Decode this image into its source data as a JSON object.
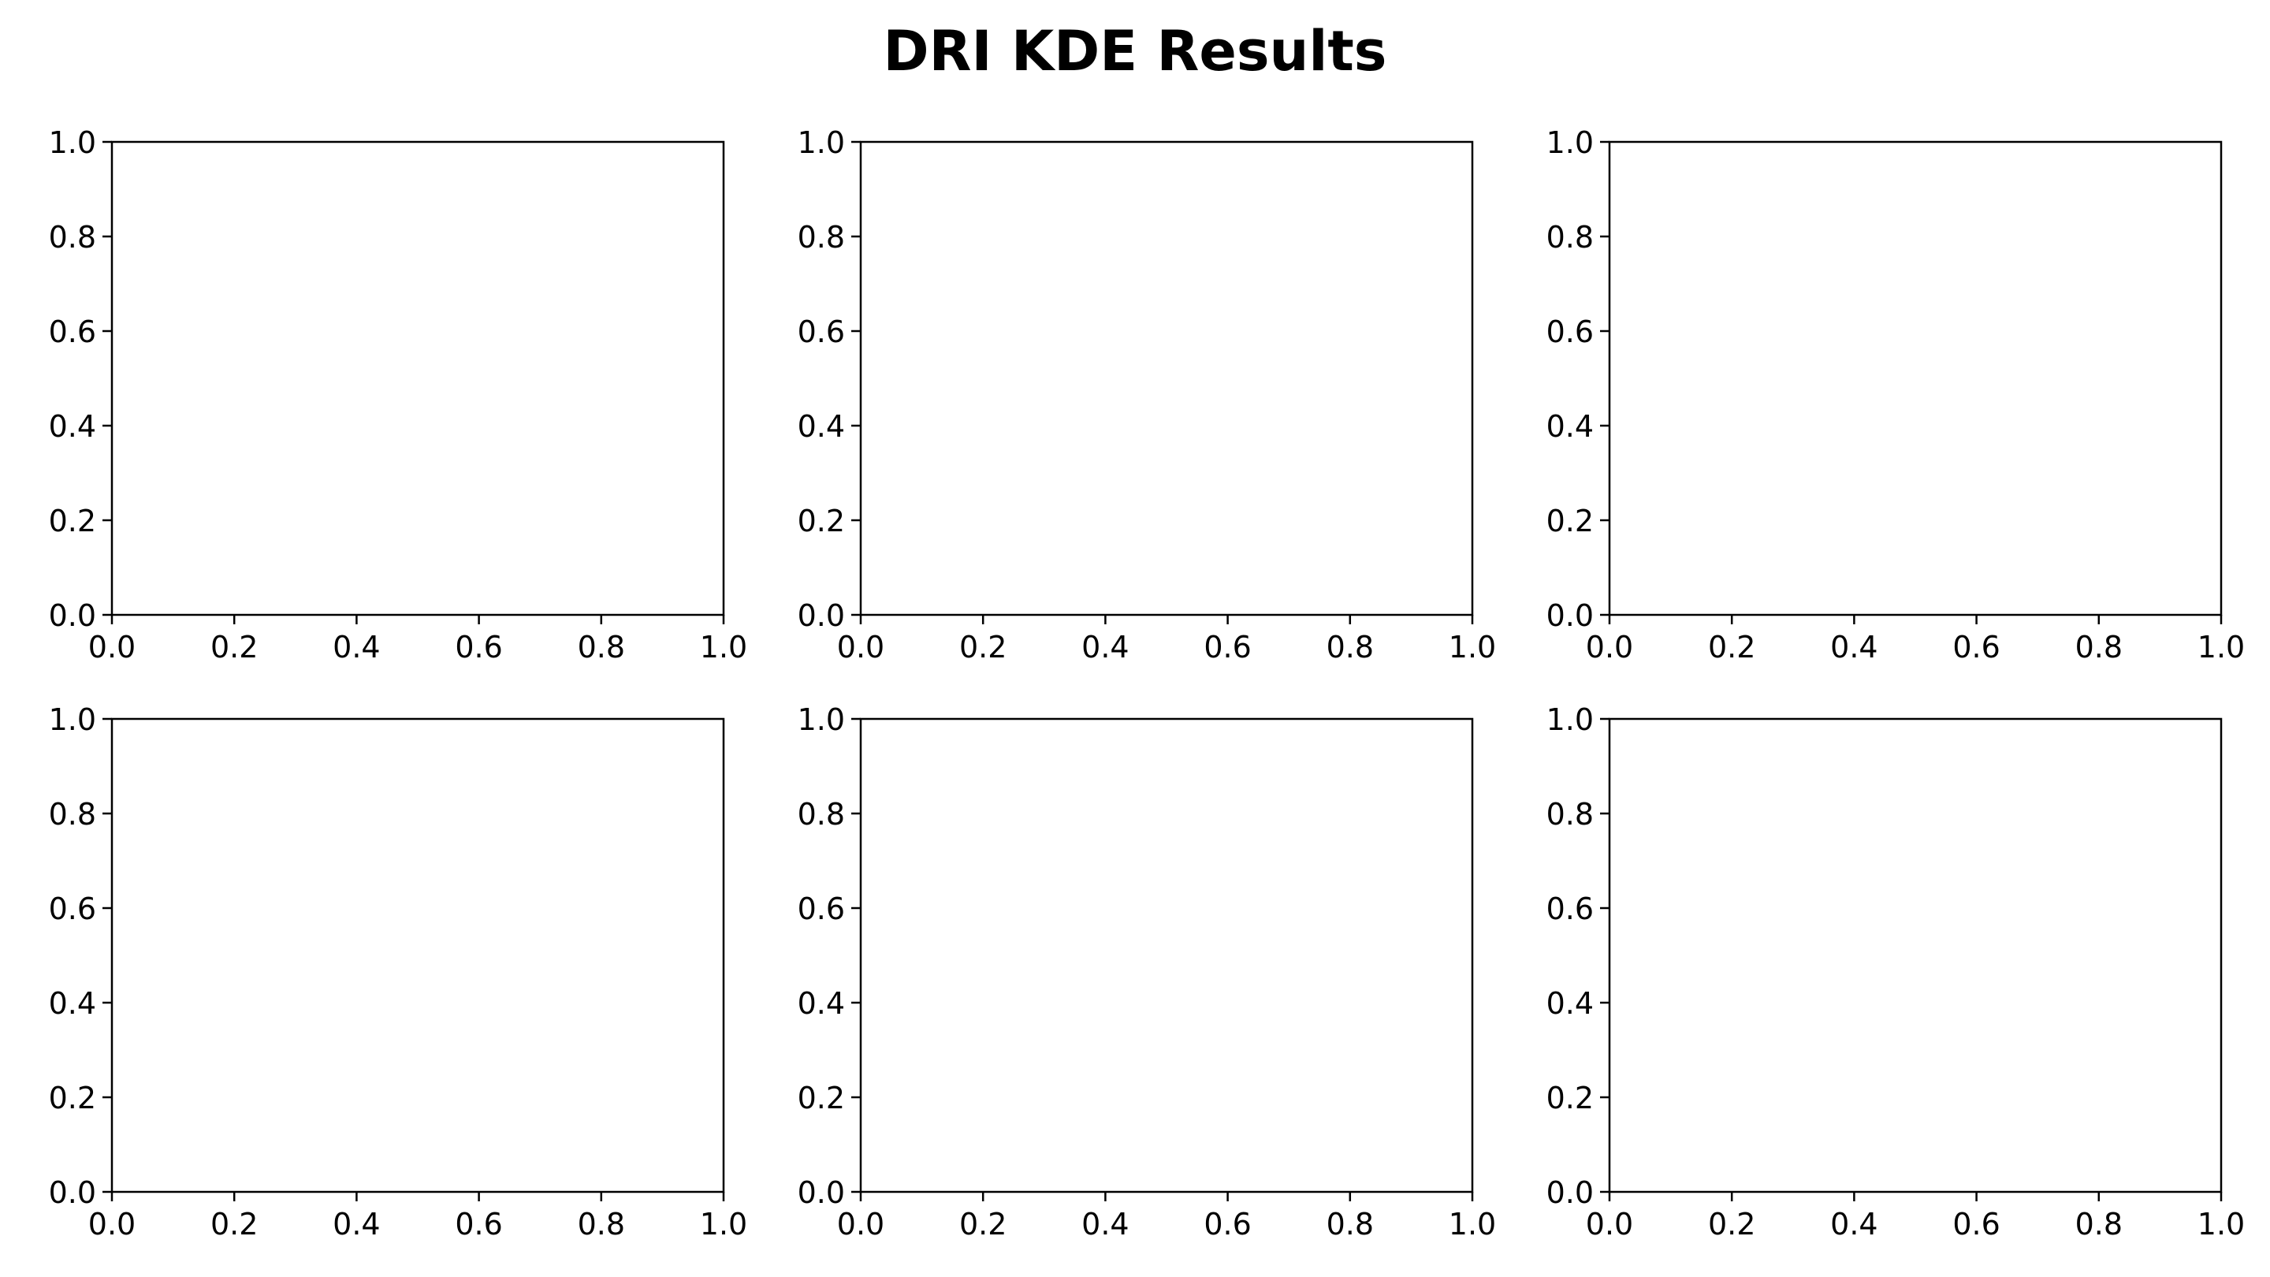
{
  "title": "DRI KDE Results",
  "chart_data": [
    {
      "type": "line",
      "series": [],
      "xlim": [
        0.0,
        1.0
      ],
      "ylim": [
        0.0,
        1.0
      ],
      "xticks": [
        "0.0",
        "0.2",
        "0.4",
        "0.6",
        "0.8",
        "1.0"
      ],
      "yticks": [
        "0.0",
        "0.2",
        "0.4",
        "0.6",
        "0.8",
        "1.0"
      ],
      "grid": false
    },
    {
      "type": "line",
      "series": [],
      "xlim": [
        0.0,
        1.0
      ],
      "ylim": [
        0.0,
        1.0
      ],
      "xticks": [
        "0.0",
        "0.2",
        "0.4",
        "0.6",
        "0.8",
        "1.0"
      ],
      "yticks": [
        "0.0",
        "0.2",
        "0.4",
        "0.6",
        "0.8",
        "1.0"
      ],
      "grid": false
    },
    {
      "type": "line",
      "series": [],
      "xlim": [
        0.0,
        1.0
      ],
      "ylim": [
        0.0,
        1.0
      ],
      "xticks": [
        "0.0",
        "0.2",
        "0.4",
        "0.6",
        "0.8",
        "1.0"
      ],
      "yticks": [
        "0.0",
        "0.2",
        "0.4",
        "0.6",
        "0.8",
        "1.0"
      ],
      "grid": false
    },
    {
      "type": "line",
      "series": [],
      "xlim": [
        0.0,
        1.0
      ],
      "ylim": [
        0.0,
        1.0
      ],
      "xticks": [
        "0.0",
        "0.2",
        "0.4",
        "0.6",
        "0.8",
        "1.0"
      ],
      "yticks": [
        "0.0",
        "0.2",
        "0.4",
        "0.6",
        "0.8",
        "1.0"
      ],
      "grid": false
    },
    {
      "type": "line",
      "series": [],
      "xlim": [
        0.0,
        1.0
      ],
      "ylim": [
        0.0,
        1.0
      ],
      "xticks": [
        "0.0",
        "0.2",
        "0.4",
        "0.6",
        "0.8",
        "1.0"
      ],
      "yticks": [
        "0.0",
        "0.2",
        "0.4",
        "0.6",
        "0.8",
        "1.0"
      ],
      "grid": false
    },
    {
      "type": "line",
      "series": [],
      "xlim": [
        0.0,
        1.0
      ],
      "ylim": [
        0.0,
        1.0
      ],
      "xticks": [
        "0.0",
        "0.2",
        "0.4",
        "0.6",
        "0.8",
        "1.0"
      ],
      "yticks": [
        "0.0",
        "0.2",
        "0.4",
        "0.6",
        "0.8",
        "1.0"
      ],
      "grid": false
    }
  ]
}
